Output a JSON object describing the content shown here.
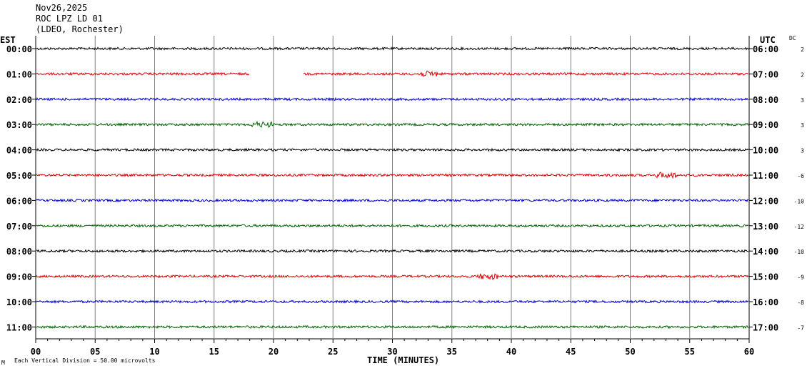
{
  "header": {
    "date": "Nov26,2025",
    "station": "ROC LPZ LD 01",
    "network": "(LDEO, Rochester)"
  },
  "left_label": "EST",
  "right_label": "UTC",
  "dc_label": "DC",
  "footer": {
    "scale_note": "Each Vertical Division =   50.00 microvolts",
    "corner_mark": "M"
  },
  "colors": {
    "black": "#000000",
    "red": "#e00000",
    "blue": "#0000d0",
    "green": "#006000",
    "grid": "#808080"
  },
  "chart_data": {
    "type": "line",
    "title": "",
    "xlabel": "TIME (MINUTES)",
    "ylabel": "",
    "xlim": [
      0,
      60
    ],
    "x_ticks": [
      "00",
      "05",
      "10",
      "15",
      "20",
      "25",
      "30",
      "35",
      "40",
      "45",
      "50",
      "55",
      "60"
    ],
    "grid": true,
    "rows": [
      {
        "est": "00:00",
        "utc": "06:00",
        "dc": "2",
        "color": "black"
      },
      {
        "est": "01:00",
        "utc": "07:00",
        "dc": "2",
        "color": "red",
        "gap_minutes": [
          18,
          22.5
        ],
        "burst_minute": 33
      },
      {
        "est": "02:00",
        "utc": "08:00",
        "dc": "3",
        "color": "blue"
      },
      {
        "est": "03:00",
        "utc": "09:00",
        "dc": "3",
        "color": "green",
        "burst_minute": 19
      },
      {
        "est": "04:00",
        "utc": "10:00",
        "dc": "3",
        "color": "black"
      },
      {
        "est": "05:00",
        "utc": "11:00",
        "dc": "-6",
        "color": "red",
        "burst_minute": 53
      },
      {
        "est": "06:00",
        "utc": "12:00",
        "dc": "-10",
        "color": "blue"
      },
      {
        "est": "07:00",
        "utc": "13:00",
        "dc": "-12",
        "color": "green"
      },
      {
        "est": "08:00",
        "utc": "14:00",
        "dc": "-10",
        "color": "black"
      },
      {
        "est": "09:00",
        "utc": "15:00",
        "dc": "-9",
        "color": "red",
        "burst_minute": 38
      },
      {
        "est": "10:00",
        "utc": "16:00",
        "dc": "-8",
        "color": "blue"
      },
      {
        "est": "11:00",
        "utc": "17:00",
        "dc": "-7",
        "color": "green"
      }
    ]
  }
}
